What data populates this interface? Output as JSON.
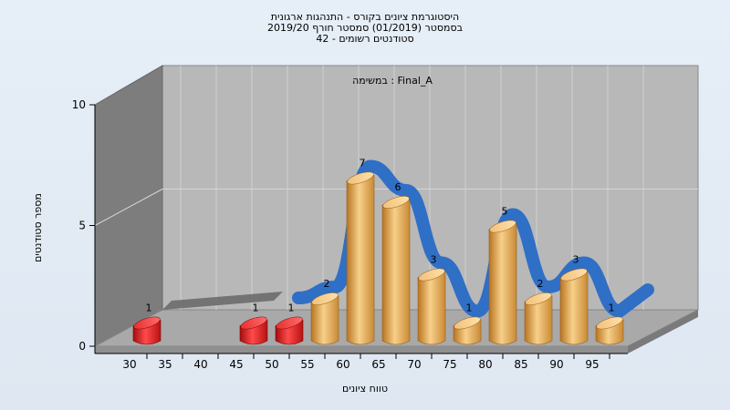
{
  "chart_data": {
    "type": "bar",
    "title_lines": [
      "היסטוגרמת ציונים בקורס - התנהגות ארגונית",
      "בסמסטר  (01/2019)  סמסטר חורף 2019/20",
      "סטודנטים רשומים - 42"
    ],
    "series_label": "במשימה : Final_A",
    "xlabel": "טווח ציונים",
    "ylabel": "מספר סטודנטים",
    "ylim": [
      0,
      10
    ],
    "yticks": [
      0,
      5,
      10
    ],
    "xticks": [
      "30",
      "35",
      "40",
      "45",
      "50",
      "55",
      "60",
      "65",
      "70",
      "75",
      "80",
      "85",
      "90",
      "95"
    ],
    "categories": [
      "30",
      "35",
      "40",
      "45",
      "50",
      "55",
      "60",
      "65",
      "70",
      "75",
      "80",
      "85",
      "90",
      "95"
    ],
    "values": [
      1,
      0,
      0,
      1,
      1,
      2,
      7,
      6,
      3,
      1,
      5,
      2,
      3,
      1
    ],
    "bar_labels": [
      "1",
      "",
      "",
      "1",
      "1",
      "2",
      "7",
      "6",
      "3",
      "1",
      "5",
      "2",
      "3",
      "1"
    ],
    "failing_below": 55,
    "colors": {
      "fail_bar": "#d41a1a",
      "pass_bar": "#e6a040",
      "curve": "#2f6fc6",
      "back_wall": "#b8b8b8",
      "side_wall": "#7d7d7d",
      "floor": "#a9a9a9"
    },
    "grid": true
  }
}
